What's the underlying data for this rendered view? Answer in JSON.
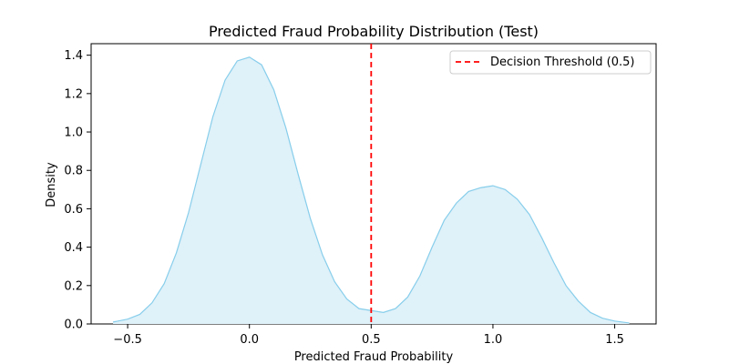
{
  "chart_data": {
    "type": "area",
    "title": "Predicted Fraud Probability Distribution (Test)",
    "xlabel": "Predicted Fraud Probability",
    "ylabel": "Density",
    "xlim": [
      -0.65,
      1.67
    ],
    "ylim": [
      0,
      1.46
    ],
    "xticks": [
      -0.5,
      0.0,
      0.5,
      1.0,
      1.5
    ],
    "xtick_labels": [
      "−0.5",
      "0.0",
      "0.5",
      "1.0",
      "1.5"
    ],
    "yticks": [
      0,
      0.2,
      0.4,
      0.6,
      0.8,
      1.0,
      1.2,
      1.4
    ],
    "ytick_labels": [
      "0.0",
      "0.2",
      "0.4",
      "0.6",
      "0.8",
      "1.0",
      "1.2",
      "1.4"
    ],
    "grid": false,
    "legend_position": "top-right",
    "series": [
      {
        "kind": "kde",
        "x": [
          -0.56,
          -0.5,
          -0.45,
          -0.4,
          -0.35,
          -0.3,
          -0.25,
          -0.2,
          -0.15,
          -0.1,
          -0.05,
          0.0,
          0.05,
          0.1,
          0.15,
          0.2,
          0.25,
          0.3,
          0.35,
          0.4,
          0.45,
          0.5,
          0.55,
          0.6,
          0.65,
          0.7,
          0.75,
          0.8,
          0.85,
          0.9,
          0.95,
          1.0,
          1.05,
          1.1,
          1.15,
          1.2,
          1.25,
          1.3,
          1.35,
          1.4,
          1.45,
          1.5,
          1.56
        ],
        "y": [
          0.01,
          0.025,
          0.05,
          0.11,
          0.21,
          0.37,
          0.58,
          0.83,
          1.08,
          1.27,
          1.37,
          1.39,
          1.35,
          1.22,
          1.02,
          0.78,
          0.55,
          0.36,
          0.22,
          0.13,
          0.08,
          0.07,
          0.06,
          0.08,
          0.14,
          0.25,
          0.4,
          0.54,
          0.63,
          0.69,
          0.71,
          0.72,
          0.7,
          0.65,
          0.57,
          0.45,
          0.32,
          0.2,
          0.12,
          0.06,
          0.03,
          0.015,
          0.005
        ],
        "fill_color": "#dff1f9",
        "line_color": "#87ceeb"
      }
    ],
    "threshold": {
      "x": 0.5,
      "label": "Decision Threshold (0.5)",
      "color": "#ff0000",
      "style": "dashed"
    }
  }
}
